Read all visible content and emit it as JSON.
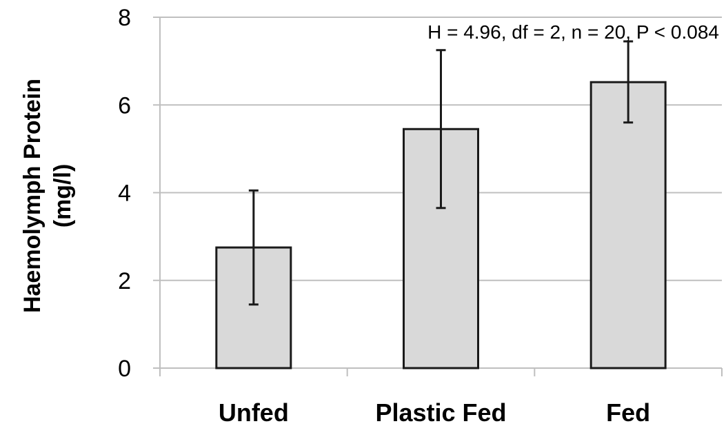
{
  "chart_data": {
    "type": "bar",
    "categories": [
      "Unfed",
      "Plastic Fed",
      "Fed"
    ],
    "values": [
      2.75,
      5.45,
      6.52
    ],
    "error_upper": [
      4.05,
      7.25,
      7.45
    ],
    "error_lower": [
      1.45,
      3.65,
      5.6
    ],
    "ylim": [
      0,
      8
    ],
    "yticks": [
      0,
      2,
      4,
      6,
      8
    ],
    "ylabel_line1": "Haemolymph Protein",
    "ylabel_line2": "(mg/l)",
    "annotation": "H = 4.96, df = 2, n = 20, P < 0.084",
    "grid": true,
    "colors": {
      "bar_fill": "#d9d9d9",
      "bar_stroke": "#1a1a1a",
      "grid": "#bfbfbf",
      "error": "#1a1a1a"
    }
  }
}
